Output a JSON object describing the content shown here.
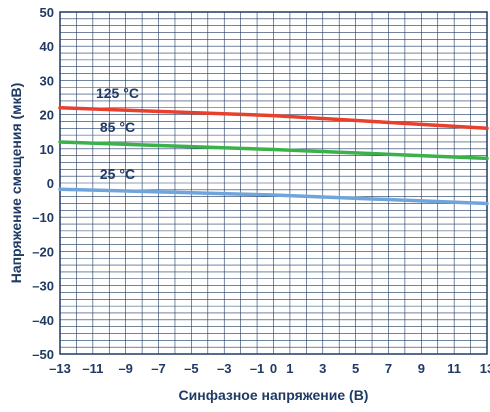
{
  "chart_data": {
    "type": "line",
    "xlabel": "Синфазное напряжение (В)",
    "ylabel": "Напряжение смещения (мкВ)",
    "xlim": [
      -13,
      13
    ],
    "ylim": [
      -50,
      50
    ],
    "x_ticks": [
      -13,
      -11,
      -9,
      -7,
      -5,
      -3,
      -1,
      0,
      1,
      3,
      5,
      7,
      9,
      11,
      13
    ],
    "x_tick_labels": [
      "–13",
      "–11",
      "–9",
      "–7",
      "–5",
      "–3",
      "–1",
      "0",
      "1",
      "3",
      "5",
      "7",
      "9",
      "11",
      "13"
    ],
    "y_ticks": [
      50,
      40,
      30,
      20,
      10,
      0,
      -10,
      -20,
      -30,
      -40,
      -50
    ],
    "y_tick_labels": [
      "50",
      "40",
      "30",
      "20",
      "10",
      "0",
      "–10",
      "–20",
      "–30",
      "–40",
      "–50"
    ],
    "x_minor_step": 1,
    "y_minor_step": 2,
    "grid": true,
    "series": [
      {
        "name": "125 °C",
        "color": "#e8402c",
        "x": [
          -13,
          0,
          13
        ],
        "values": [
          22,
          19.7,
          16
        ]
      },
      {
        "name": "85 °C",
        "color": "#3bb14a",
        "x": [
          -13,
          0,
          13
        ],
        "values": [
          12,
          9.8,
          7.2
        ]
      },
      {
        "name": "25 °C",
        "color": "#6fa5dc",
        "x": [
          -13,
          0,
          13
        ],
        "values": [
          -1.8,
          -3.5,
          -6
        ]
      }
    ]
  }
}
